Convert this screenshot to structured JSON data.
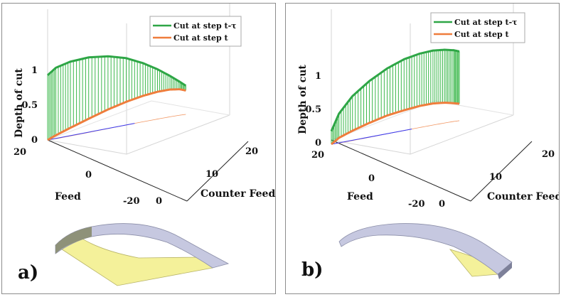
{
  "colors": {
    "previous_cut": "#2ea646",
    "current_cut": "#ef7d3c",
    "fill_line": "#3cb84c",
    "blue_line": "#3a3af0",
    "grid": "#d6d6d6",
    "chip_top": "#c6c8e0",
    "chip_face": "#f4f19a"
  },
  "chart_data": [
    {
      "type": "line",
      "panel_label": "a)",
      "zlabel": "Depth of cut",
      "xlabel": "Feed",
      "ylabel": "Counter Feed",
      "zticks": [
        "0",
        "0.5",
        "1"
      ],
      "xticks": [
        "20",
        "0",
        "-20"
      ],
      "yticks": [
        "0",
        "10",
        "20"
      ],
      "zlim": [
        0,
        1.2
      ],
      "xlim": [
        -20,
        20
      ],
      "ylim": [
        0,
        20
      ],
      "legend_position": "top-right",
      "series": [
        {
          "name": "Cut at step t-τ",
          "x": [
            20,
            16,
            12,
            8,
            4,
            0,
            -4,
            -8,
            -12,
            -16,
            -20
          ],
          "y": [
            0,
            0.7,
            2.6,
            5.2,
            8.0,
            10.6,
            12.9,
            14.8,
            16.3,
            17.3,
            17.6
          ],
          "z": [
            0.95,
            1.04,
            1.09,
            1.1,
            1.06,
            0.98,
            0.86,
            0.73,
            0.6,
            0.49,
            0.42
          ]
        },
        {
          "name": "Cut at step t",
          "x": [
            20,
            16,
            12,
            8,
            4,
            0,
            -4,
            -8,
            -12,
            -16,
            -20
          ],
          "y": [
            0,
            0.7,
            2.6,
            5.2,
            8.0,
            10.6,
            12.9,
            14.8,
            16.3,
            17.3,
            17.6
          ],
          "z": [
            0.0,
            0.05,
            0.12,
            0.2,
            0.28,
            0.34,
            0.38,
            0.4,
            0.4,
            0.38,
            0.35
          ]
        }
      ]
    },
    {
      "type": "line",
      "panel_label": "b)",
      "zlabel": "Depth of cut",
      "xlabel": "Feed",
      "ylabel": "Counter Feed",
      "zticks": [
        "0",
        "0.5",
        "1"
      ],
      "xticks": [
        "20",
        "0",
        "-20"
      ],
      "yticks": [
        "0",
        "10",
        "20"
      ],
      "zlim": [
        0,
        1.2
      ],
      "xlim": [
        -20,
        20
      ],
      "ylim": [
        0,
        20
      ],
      "legend_position": "top-right",
      "series": [
        {
          "name": "Cut at step t-τ",
          "x": [
            20,
            16,
            12,
            8,
            4,
            0,
            -4,
            -8,
            -12,
            -16,
            -20
          ],
          "y": [
            0,
            0.7,
            2.6,
            5.2,
            8.0,
            10.6,
            12.9,
            14.8,
            16.3,
            17.3,
            17.6
          ],
          "z": [
            0.2,
            0.45,
            0.68,
            0.86,
            1.0,
            1.09,
            1.13,
            1.14,
            1.12,
            1.09,
            1.06
          ]
        },
        {
          "name": "Cut at step t",
          "x": [
            20,
            16,
            12,
            8,
            4,
            0,
            -4,
            -8,
            -12,
            -16,
            -20
          ],
          "y": [
            0,
            0.7,
            2.6,
            5.2,
            8.0,
            10.6,
            12.9,
            14.8,
            16.3,
            17.3,
            17.6
          ],
          "z": [
            0.0,
            0.08,
            0.15,
            0.22,
            0.28,
            0.31,
            0.33,
            0.33,
            0.31,
            0.28,
            0.26
          ]
        }
      ]
    }
  ]
}
